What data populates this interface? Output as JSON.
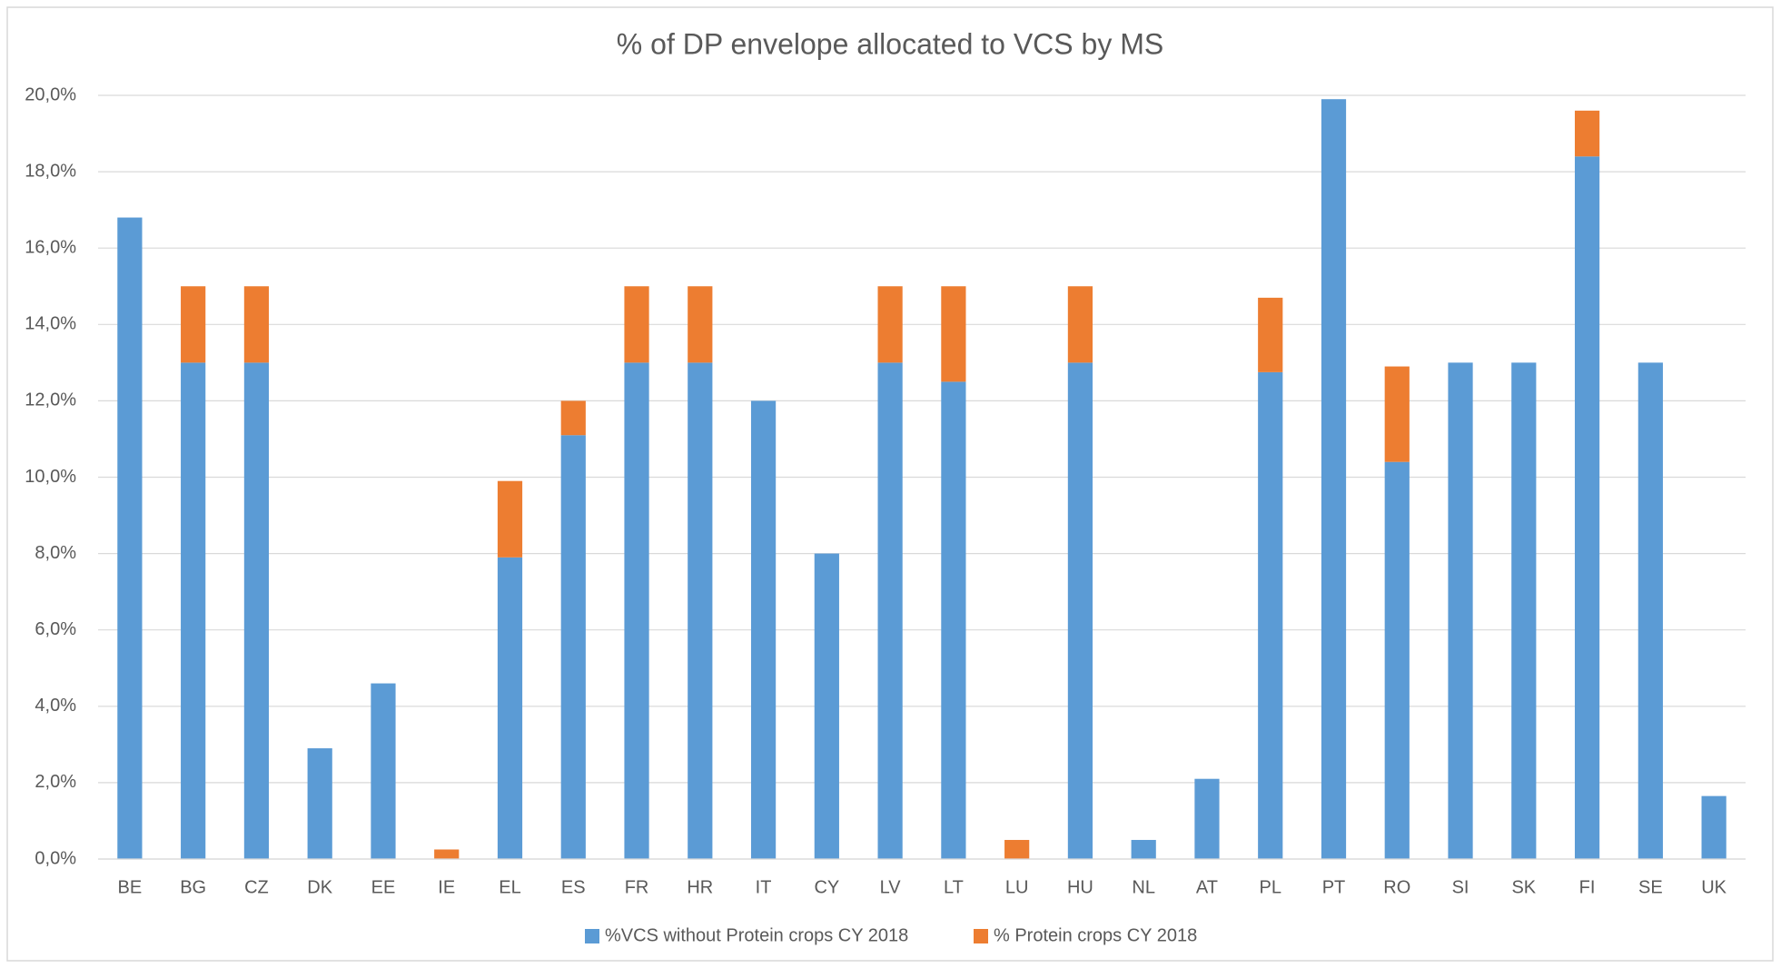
{
  "chart_data": {
    "type": "stacked_bar",
    "title": "% of DP envelope allocated to VCS by MS",
    "categories": [
      "BE",
      "BG",
      "CZ",
      "DK",
      "EE",
      "IE",
      "EL",
      "ES",
      "FR",
      "HR",
      "IT",
      "CY",
      "LV",
      "LT",
      "LU",
      "HU",
      "NL",
      "AT",
      "PL",
      "PT",
      "RO",
      "SI",
      "SK",
      "FI",
      "SE",
      "UK"
    ],
    "series": [
      {
        "name": "%VCS without Protein crops CY 2018",
        "color": "#5b9bd5",
        "values": [
          16.8,
          13,
          13,
          2.9,
          4.6,
          0,
          7.9,
          11.1,
          13,
          13,
          12,
          8,
          13,
          12.5,
          0,
          13,
          0.5,
          2.1,
          12.75,
          19.9,
          10.4,
          13,
          13,
          18.4,
          13,
          1.65
        ]
      },
      {
        "name": "% Protein crops CY 2018",
        "color": "#ed7d31",
        "values": [
          0,
          2,
          2,
          0,
          0,
          0.25,
          2,
          0.9,
          2,
          2,
          0,
          0,
          2,
          2.5,
          0.5,
          2,
          0,
          0,
          1.95,
          0,
          2.5,
          0,
          0,
          1.2,
          0,
          0
        ]
      }
    ],
    "ylim": [
      0,
      20
    ],
    "yticks": [
      {
        "value": 0,
        "label": "0,0%"
      },
      {
        "value": 2,
        "label": "2,0%"
      },
      {
        "value": 4,
        "label": "4,0%"
      },
      {
        "value": 6,
        "label": "6,0%"
      },
      {
        "value": 8,
        "label": "8,0%"
      },
      {
        "value": 10,
        "label": "10,0%"
      },
      {
        "value": 12,
        "label": "12,0%"
      },
      {
        "value": 14,
        "label": "14,0%"
      },
      {
        "value": 16,
        "label": "16,0%"
      },
      {
        "value": 18,
        "label": "18,0%"
      },
      {
        "value": 20,
        "label": "20,0%"
      }
    ],
    "grid": true,
    "legend": "bottom"
  }
}
